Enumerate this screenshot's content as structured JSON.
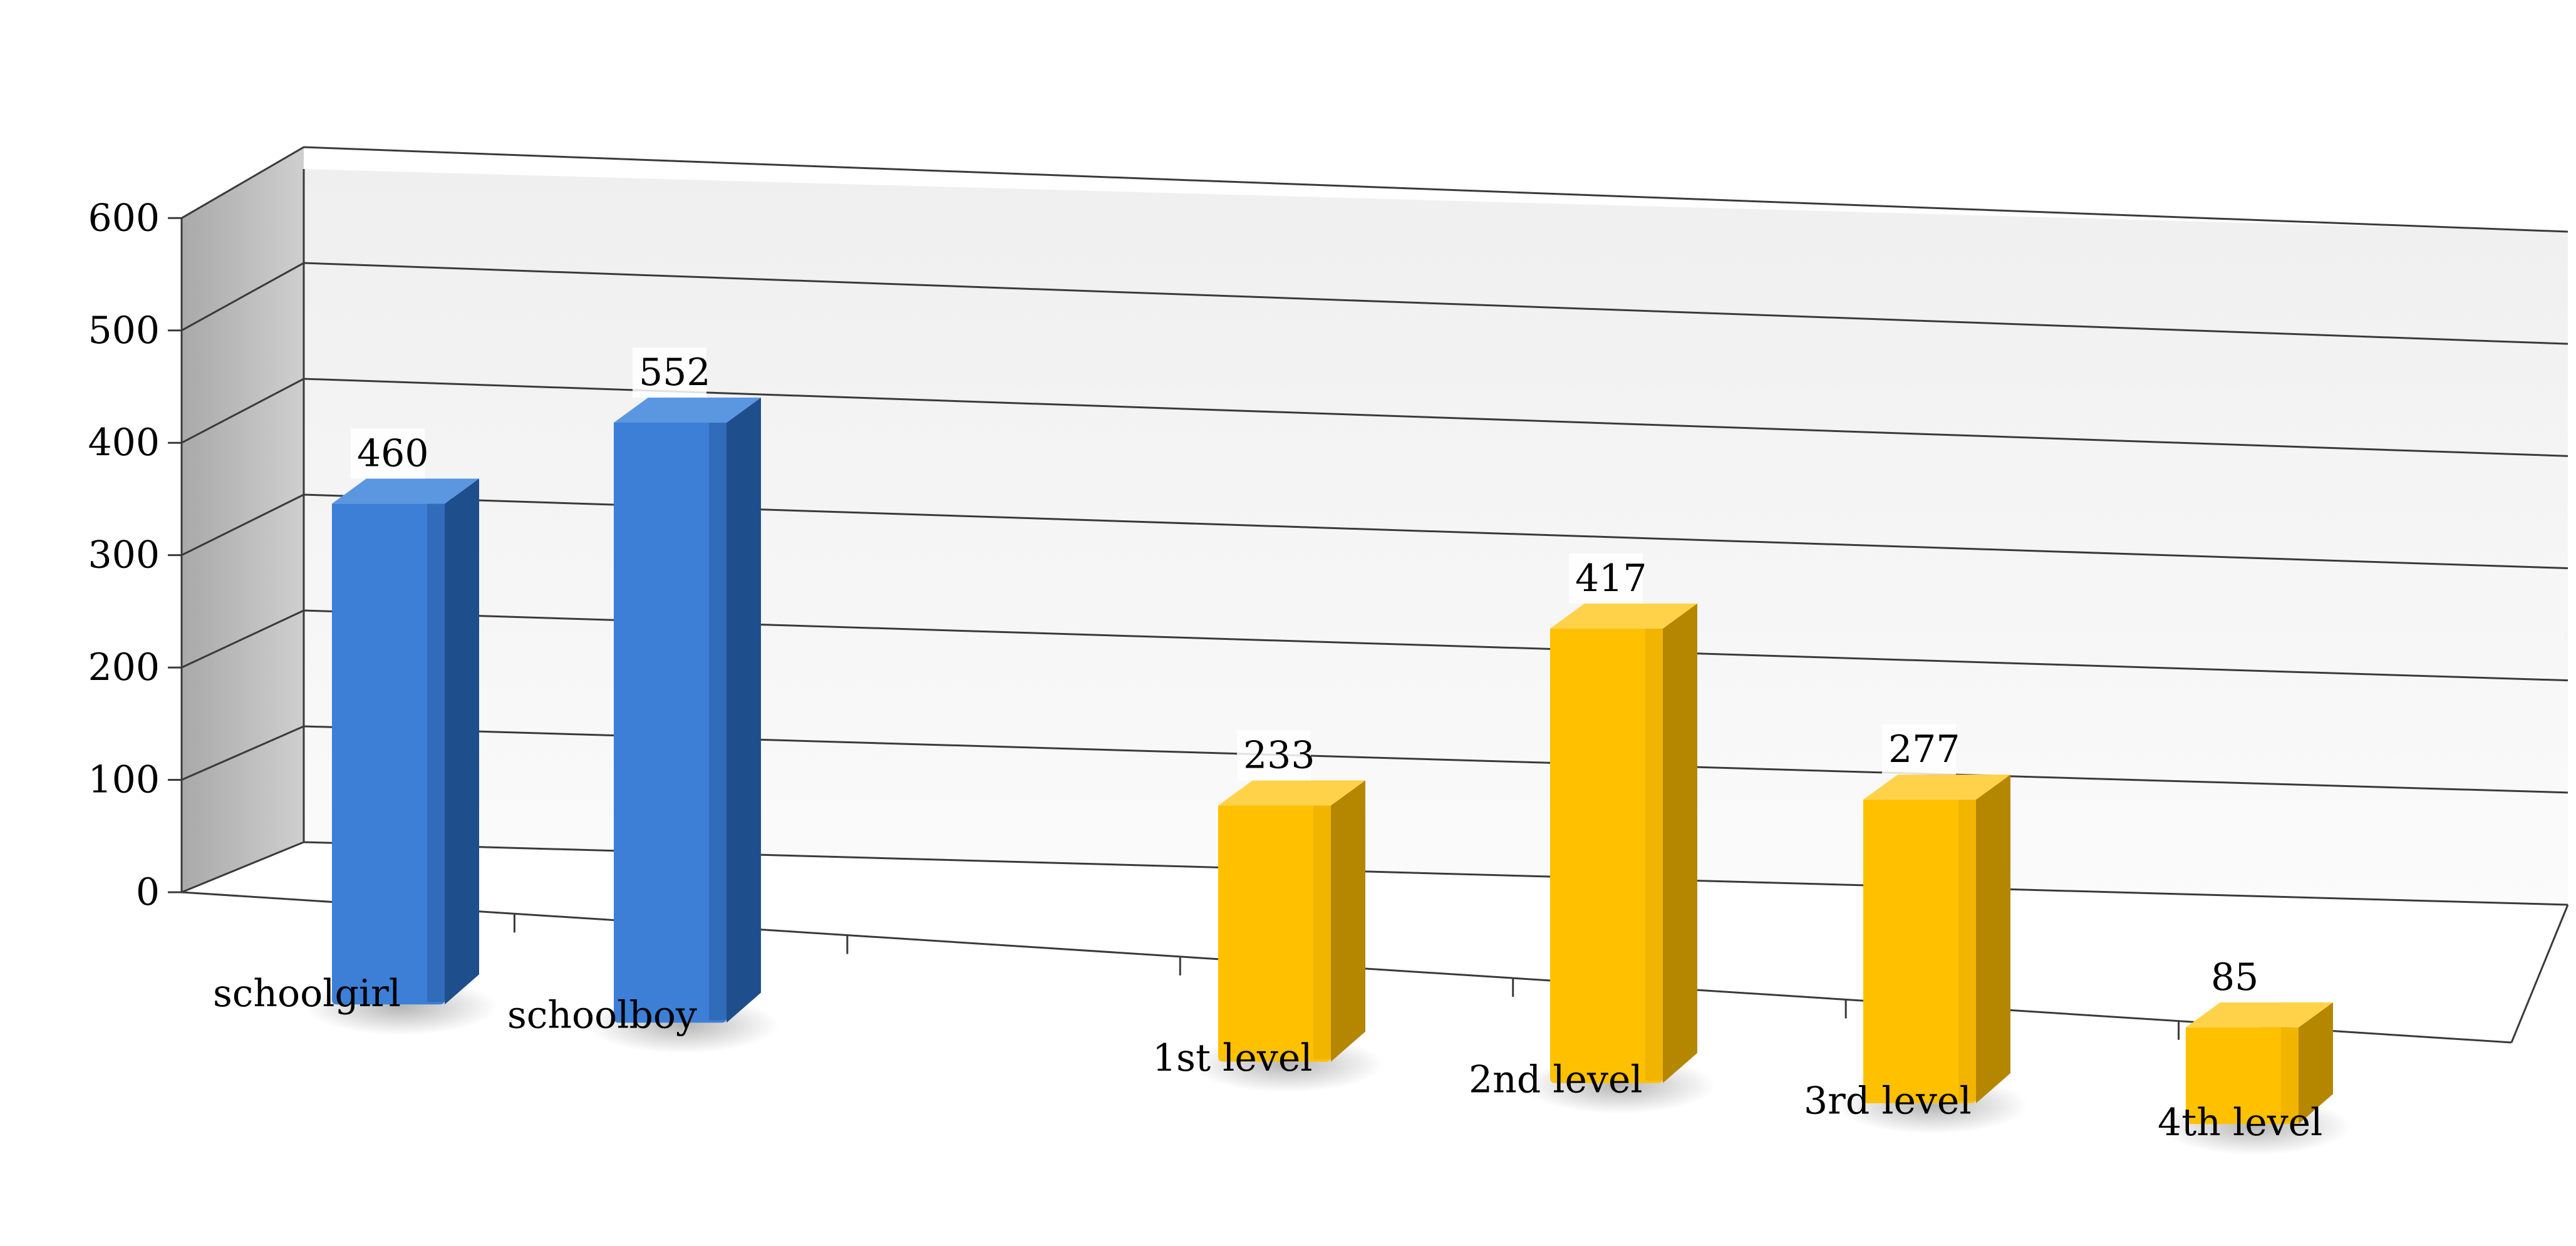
{
  "chart_data": {
    "type": "bar",
    "title": "",
    "xlabel": "",
    "ylabel": "",
    "ylim": [
      0,
      600
    ],
    "yticks": [
      0,
      100,
      200,
      300,
      400,
      500,
      600
    ],
    "grid": true,
    "style": "3d-columns",
    "categories": [
      "schoolgirl",
      "schoolboy",
      "",
      "1st level",
      "2nd level",
      "3rd level",
      "4th level"
    ],
    "values": [
      460,
      552,
      null,
      233,
      417,
      277,
      85
    ],
    "bar_colors": [
      "blue",
      "blue",
      null,
      "yellow",
      "yellow",
      "yellow",
      "yellow"
    ],
    "palette": {
      "blue": {
        "front": "#3d7fd6",
        "front_dark": "#2a5fa8",
        "side": "#1f4e8c",
        "top": "#5b97e0"
      },
      "yellow": {
        "front": "#ffc000",
        "front_dark": "#e8ad00",
        "side": "#b58600",
        "top": "#ffd24a"
      }
    }
  }
}
